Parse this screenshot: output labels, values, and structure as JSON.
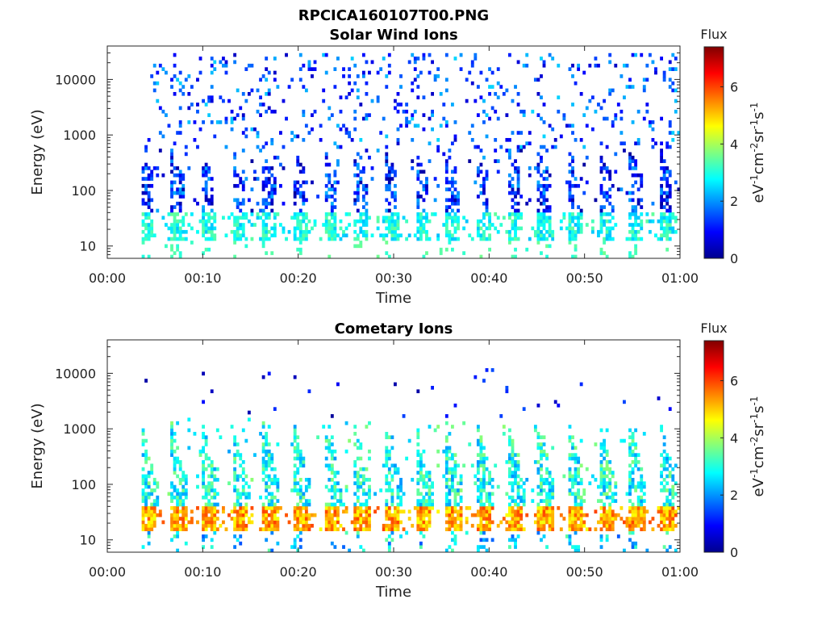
{
  "figure": {
    "title": "RPCICA160107T00.PNG"
  },
  "chart_data": [
    {
      "type": "heatmap",
      "title": "Solar Wind Ions",
      "xlabel": "Time",
      "ylabel": "Energy (eV)",
      "x_ticks": [
        "00:00",
        "00:10",
        "00:20",
        "00:30",
        "00:40",
        "00:50",
        "01:00"
      ],
      "x_range_minutes": [
        0,
        60
      ],
      "y_scale": "log",
      "y_ticks": [
        "10",
        "100",
        "1000",
        "10000"
      ],
      "y_range": [
        6,
        40000
      ],
      "colorbar": {
        "title": "Flux",
        "label": "eV-1cm-2sr-1s-1",
        "ticks": [
          "0",
          "2",
          "4",
          "6"
        ],
        "range": [
          0,
          7.4
        ],
        "colormap": "jet"
      },
      "pulse_period_minutes": 3.2,
      "pulse_start_minutes": 3.5,
      "pulse_end_minutes": 60,
      "description_of_values": {
        "low_energy_band_eV": [
          12,
          40
        ],
        "low_energy_flux": [
          2.3,
          3.5
        ],
        "mid_energy_band_eV": [
          40,
          600
        ],
        "mid_energy_flux": [
          0.2,
          2.2
        ],
        "high_energy_scatter_eV": [
          600,
          30000
        ],
        "high_energy_flux": [
          0.5,
          2.5
        ]
      }
    },
    {
      "type": "heatmap",
      "title": "Cometary Ions",
      "xlabel": "Time",
      "ylabel": "Energy (eV)",
      "x_ticks": [
        "00:00",
        "00:10",
        "00:20",
        "00:30",
        "00:40",
        "00:50",
        "01:00"
      ],
      "x_range_minutes": [
        0,
        60
      ],
      "y_scale": "log",
      "y_ticks": [
        "10",
        "100",
        "1000",
        "10000"
      ],
      "y_range": [
        6,
        40000
      ],
      "colorbar": {
        "title": "Flux",
        "label": "eV-1cm-2sr-1s-1",
        "ticks": [
          "0",
          "2",
          "4",
          "6"
        ],
        "range": [
          0,
          7.4
        ],
        "colormap": "jet"
      },
      "pulse_period_minutes": 3.2,
      "pulse_start_minutes": 3.5,
      "pulse_end_minutes": 60,
      "description_of_values": {
        "peak_band_eV": [
          15,
          40
        ],
        "peak_flux": [
          4.5,
          6.0
        ],
        "mid_energy_band_eV": [
          40,
          1500
        ],
        "mid_energy_flux": [
          2.0,
          3.8
        ],
        "high_energy_scatter_eV": [
          1500,
          12000
        ],
        "high_energy_flux": [
          0.2,
          1.5
        ]
      }
    }
  ]
}
